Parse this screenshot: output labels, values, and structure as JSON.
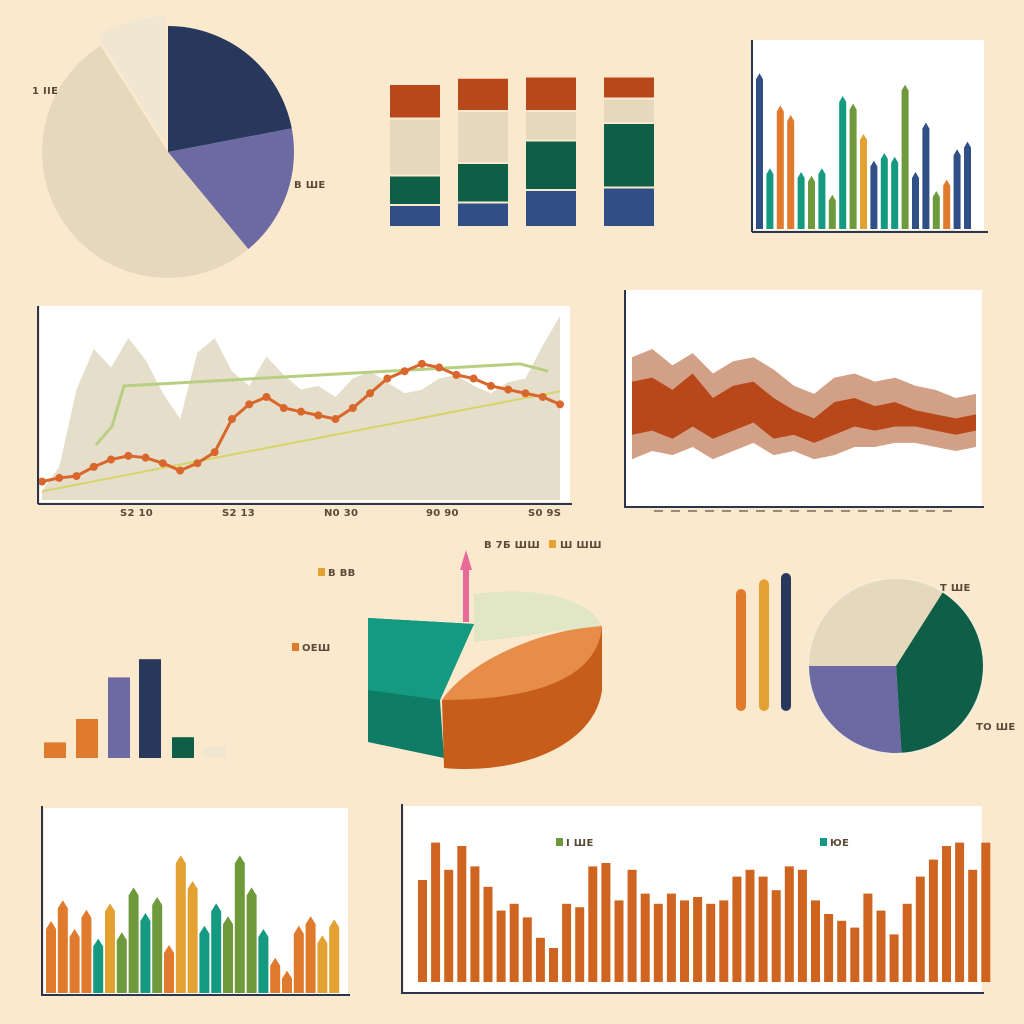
{
  "palette": {
    "background": "#fbe9cd",
    "navy": "#27385c",
    "blue": "#2f4f86",
    "purple": "#6d6aa3",
    "beige": "#e6d8bd",
    "cream": "#f1e6d2",
    "orange": "#e07a2c",
    "rust": "#b8471a",
    "green": "#0f5e47",
    "teal": "#139a80",
    "olive": "#6f9a3b",
    "mustard": "#e3a132",
    "rose": "#e76a9a",
    "pale_green": "#e1e6c4"
  },
  "pie_top_left": {
    "type": "pie",
    "labels": [
      "1 ІІЕ",
      "В ШЕ"
    ],
    "slices": [
      {
        "color_key": "navy",
        "value": 22
      },
      {
        "color_key": "purple",
        "value": 17
      },
      {
        "color_key": "beige",
        "value": 52
      },
      {
        "color_key": "cream",
        "value": 9
      }
    ]
  },
  "stacked_bars_top": {
    "type": "bar",
    "stacked": true,
    "series": [
      {
        "color_key": "blue",
        "values": [
          16,
          18,
          28,
          30
        ]
      },
      {
        "color_key": "green",
        "values": [
          22,
          30,
          38,
          50
        ]
      },
      {
        "color_key": "beige",
        "values": [
          44,
          40,
          22,
          18
        ]
      },
      {
        "color_key": "rust",
        "values": [
          26,
          25,
          26,
          16
        ]
      }
    ]
  },
  "thin_bars_top_right": {
    "type": "bar",
    "values": [
      {
        "v": 82,
        "c": "blue"
      },
      {
        "v": 32,
        "c": "teal"
      },
      {
        "v": 65,
        "c": "orange"
      },
      {
        "v": 60,
        "c": "orange"
      },
      {
        "v": 30,
        "c": "teal"
      },
      {
        "v": 28,
        "c": "olive"
      },
      {
        "v": 32,
        "c": "teal"
      },
      {
        "v": 18,
        "c": "olive"
      },
      {
        "v": 70,
        "c": "teal"
      },
      {
        "v": 66,
        "c": "olive"
      },
      {
        "v": 50,
        "c": "mustard"
      },
      {
        "v": 36,
        "c": "blue"
      },
      {
        "v": 40,
        "c": "teal"
      },
      {
        "v": 38,
        "c": "teal"
      },
      {
        "v": 76,
        "c": "olive"
      },
      {
        "v": 30,
        "c": "blue"
      },
      {
        "v": 56,
        "c": "blue"
      },
      {
        "v": 20,
        "c": "olive"
      },
      {
        "v": 26,
        "c": "orange"
      },
      {
        "v": 42,
        "c": "blue"
      },
      {
        "v": 46,
        "c": "blue"
      }
    ]
  },
  "line_area_middle": {
    "type": "line",
    "x_tick_labels": [
      "S2 10",
      "S2 13",
      "N0 30",
      "90 90",
      "S0 9S"
    ],
    "area_points": [
      5,
      18,
      60,
      82,
      72,
      88,
      76,
      58,
      44,
      80,
      88,
      70,
      62,
      78,
      68,
      60,
      62,
      56,
      66,
      70,
      64,
      58,
      60,
      66,
      68,
      62,
      58,
      64,
      66,
      84,
      100
    ],
    "orange_points": [
      10,
      12,
      13,
      18,
      22,
      24,
      23,
      20,
      16,
      20,
      26,
      44,
      52,
      56,
      50,
      48,
      46,
      44,
      50,
      58,
      66,
      70,
      74,
      72,
      68,
      66,
      62,
      60,
      58,
      56,
      52
    ],
    "yellow_points": [
      4,
      6,
      8,
      10,
      12,
      14,
      16,
      18,
      20,
      22,
      24,
      26,
      28,
      30,
      32,
      34,
      36,
      38,
      40,
      42,
      44,
      46,
      48,
      50,
      52,
      54,
      56,
      58,
      60,
      62,
      64
    ],
    "green_points": [
      30,
      40,
      62,
      74,
      70
    ]
  },
  "band_chart_right": {
    "type": "area",
    "x_tick_count": 18,
    "band_outer_top": [
      70,
      74,
      66,
      72,
      62,
      68,
      70,
      64,
      56,
      52,
      60,
      62,
      58,
      60,
      56,
      54,
      50,
      52
    ],
    "band_inner_top": [
      58,
      60,
      54,
      62,
      50,
      56,
      58,
      50,
      44,
      40,
      48,
      50,
      46,
      48,
      44,
      42,
      40,
      42
    ],
    "band_inner_bottom": [
      32,
      34,
      30,
      36,
      30,
      34,
      38,
      30,
      32,
      28,
      32,
      36,
      34,
      36,
      36,
      34,
      32,
      34
    ],
    "band_outer_bottom": [
      20,
      24,
      22,
      26,
      20,
      24,
      28,
      22,
      24,
      20,
      22,
      26,
      26,
      28,
      28,
      26,
      24,
      26
    ]
  },
  "bars_lower_left": {
    "type": "bar",
    "values": [
      {
        "v": 12,
        "c": "orange"
      },
      {
        "v": 30,
        "c": "orange"
      },
      {
        "v": 62,
        "c": "purple"
      },
      {
        "v": 76,
        "c": "navy"
      },
      {
        "v": 16,
        "c": "green"
      },
      {
        "v": 9,
        "c": "cream"
      }
    ]
  },
  "pie_3d_center": {
    "type": "pie",
    "labels": [
      "В 7Б ШШ",
      "Ш ШШ",
      "В ВВ",
      "ОЕШ"
    ],
    "slices": [
      {
        "color_key": "teal",
        "value": 30
      },
      {
        "color_key": "pale_green",
        "value": 22
      },
      {
        "color_key": "orange",
        "value": 48
      }
    ]
  },
  "vertical_lines_right": {
    "type": "bar",
    "values": [
      {
        "v": 70,
        "c": "orange"
      },
      {
        "v": 76,
        "c": "mustard"
      },
      {
        "v": 80,
        "c": "navy"
      }
    ]
  },
  "pie_right": {
    "type": "pie",
    "labels": [
      "Т ШЕ",
      "ТО ШЕ"
    ],
    "slices": [
      {
        "color_key": "beige",
        "value": 34
      },
      {
        "color_key": "green",
        "value": 40
      },
      {
        "color_key": "purple",
        "value": 26
      }
    ]
  },
  "bars_bottom_left": {
    "type": "bar",
    "values": [
      {
        "v": 45,
        "c": "orange"
      },
      {
        "v": 58,
        "c": "orange"
      },
      {
        "v": 40,
        "c": "orange"
      },
      {
        "v": 52,
        "c": "orange"
      },
      {
        "v": 34,
        "c": "teal"
      },
      {
        "v": 56,
        "c": "mustard"
      },
      {
        "v": 38,
        "c": "olive"
      },
      {
        "v": 66,
        "c": "olive"
      },
      {
        "v": 50,
        "c": "teal"
      },
      {
        "v": 60,
        "c": "olive"
      },
      {
        "v": 30,
        "c": "orange"
      },
      {
        "v": 86,
        "c": "mustard"
      },
      {
        "v": 70,
        "c": "mustard"
      },
      {
        "v": 42,
        "c": "teal"
      },
      {
        "v": 56,
        "c": "teal"
      },
      {
        "v": 48,
        "c": "olive"
      },
      {
        "v": 86,
        "c": "olive"
      },
      {
        "v": 66,
        "c": "olive"
      },
      {
        "v": 40,
        "c": "teal"
      },
      {
        "v": 22,
        "c": "orange"
      },
      {
        "v": 14,
        "c": "orange"
      },
      {
        "v": 42,
        "c": "orange"
      },
      {
        "v": 48,
        "c": "orange"
      },
      {
        "v": 36,
        "c": "mustard"
      },
      {
        "v": 46,
        "c": "mustard"
      }
    ]
  },
  "bars_bottom_right": {
    "type": "bar",
    "legend": [
      "I ШЕ",
      "ЮЕ"
    ],
    "values": [
      60,
      82,
      66,
      80,
      68,
      56,
      42,
      46,
      38,
      26,
      20,
      46,
      44,
      68,
      70,
      48,
      66,
      52,
      46,
      52,
      48,
      50,
      46,
      48,
      62,
      66,
      62,
      54,
      68,
      66,
      48,
      40,
      36,
      32,
      52,
      42,
      28,
      46,
      62,
      72,
      80,
      82,
      66,
      82
    ]
  }
}
